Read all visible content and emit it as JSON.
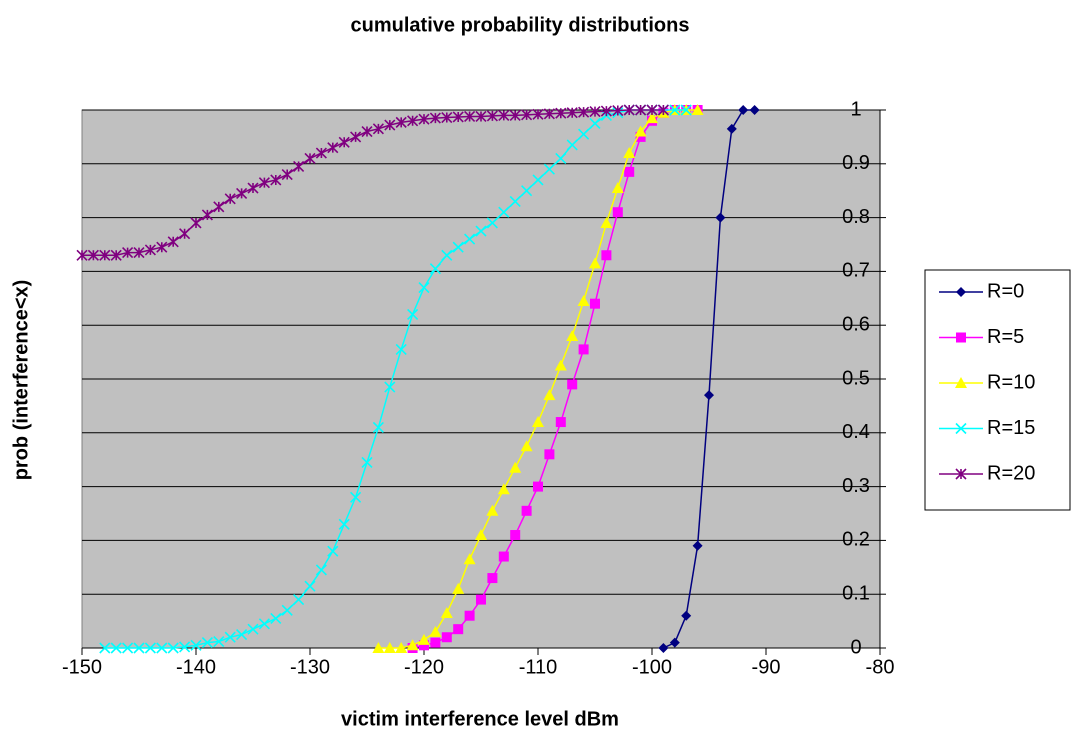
{
  "chart_data": {
    "type": "line",
    "title": "cumulative probability distributions",
    "x_label": "victim interference level dBm",
    "y_label": "prob (interference<x)",
    "xlim": [
      -150,
      -80
    ],
    "xticks": [
      -150,
      -140,
      -130,
      -120,
      -110,
      -100,
      -90,
      -80
    ],
    "ylim": [
      0,
      1
    ],
    "yticks": [
      0,
      0.1,
      0.2,
      0.3,
      0.4,
      0.5,
      0.6,
      0.7,
      0.8,
      0.9,
      1
    ],
    "grid": true,
    "legend": "right",
    "plot_background": "#c0c0c0",
    "series": [
      {
        "name": "R=0",
        "color": "#000080",
        "marker": "diamond",
        "x": [
          -99,
          -98,
          -97,
          -96,
          -95,
          -94,
          -93,
          -92,
          -91
        ],
        "values": [
          0,
          0.01,
          0.06,
          0.19,
          0.47,
          0.8,
          0.965,
          1,
          1
        ]
      },
      {
        "name": "R=5",
        "color": "#ff00ff",
        "marker": "square",
        "x": [
          -121,
          -120,
          -119,
          -118,
          -117,
          -116,
          -115,
          -114,
          -113,
          -112,
          -111,
          -110,
          -109,
          -108,
          -107,
          -106,
          -105,
          -104,
          -103,
          -102,
          -101,
          -100,
          -99,
          -98,
          -97,
          -96
        ],
        "values": [
          0,
          0.005,
          0.01,
          0.02,
          0.035,
          0.06,
          0.09,
          0.13,
          0.17,
          0.21,
          0.255,
          0.3,
          0.36,
          0.42,
          0.49,
          0.555,
          0.64,
          0.73,
          0.81,
          0.885,
          0.95,
          0.98,
          0.995,
          1,
          1,
          1
        ]
      },
      {
        "name": "R=10",
        "color": "#ffff00",
        "marker": "triangle",
        "x": [
          -124,
          -123,
          -122,
          -121,
          -120,
          -119,
          -118,
          -117,
          -116,
          -115,
          -114,
          -113,
          -112,
          -111,
          -110,
          -109,
          -108,
          -107,
          -106,
          -105,
          -104,
          -103,
          -102,
          -101,
          -100,
          -99,
          -98,
          -97,
          -96
        ],
        "values": [
          0,
          0,
          0,
          0.005,
          0.015,
          0.03,
          0.065,
          0.11,
          0.165,
          0.21,
          0.255,
          0.295,
          0.335,
          0.375,
          0.42,
          0.47,
          0.525,
          0.58,
          0.645,
          0.715,
          0.79,
          0.855,
          0.92,
          0.96,
          0.985,
          0.995,
          1,
          1,
          1
        ]
      },
      {
        "name": "R=15",
        "color": "#00ffff",
        "marker": "x",
        "x": [
          -148,
          -147,
          -146,
          -145,
          -144,
          -143,
          -142,
          -141,
          -140,
          -139,
          -138,
          -137,
          -136,
          -135,
          -134,
          -133,
          -132,
          -131,
          -130,
          -129,
          -128,
          -127,
          -126,
          -125,
          -124,
          -123,
          -122,
          -121,
          -120,
          -119,
          -118,
          -117,
          -116,
          -115,
          -114,
          -113,
          -112,
          -111,
          -110,
          -109,
          -108,
          -107,
          -106,
          -105,
          -104,
          -103,
          -102,
          -101,
          -100,
          -99,
          -98,
          -97
        ],
        "values": [
          0,
          0,
          0,
          0,
          0,
          0,
          0,
          0.002,
          0.005,
          0.01,
          0.012,
          0.02,
          0.025,
          0.035,
          0.045,
          0.055,
          0.07,
          0.09,
          0.115,
          0.145,
          0.18,
          0.23,
          0.28,
          0.345,
          0.41,
          0.485,
          0.555,
          0.62,
          0.67,
          0.705,
          0.73,
          0.745,
          0.76,
          0.775,
          0.79,
          0.81,
          0.83,
          0.85,
          0.87,
          0.89,
          0.91,
          0.935,
          0.955,
          0.975,
          0.99,
          0.995,
          1,
          1,
          1,
          1,
          1,
          1
        ]
      },
      {
        "name": "R=20",
        "color": "#800080",
        "marker": "star",
        "x": [
          -150,
          -149,
          -148,
          -147,
          -146,
          -145,
          -144,
          -143,
          -142,
          -141,
          -140,
          -139,
          -138,
          -137,
          -136,
          -135,
          -134,
          -133,
          -132,
          -131,
          -130,
          -129,
          -128,
          -127,
          -126,
          -125,
          -124,
          -123,
          -122,
          -121,
          -120,
          -119,
          -118,
          -117,
          -116,
          -115,
          -114,
          -113,
          -112,
          -111,
          -110,
          -109,
          -108,
          -107,
          -106,
          -105,
          -104,
          -103,
          -102,
          -101,
          -100,
          -99
        ],
        "values": [
          0.73,
          0.73,
          0.73,
          0.73,
          0.735,
          0.735,
          0.74,
          0.745,
          0.755,
          0.77,
          0.79,
          0.805,
          0.82,
          0.835,
          0.845,
          0.855,
          0.865,
          0.87,
          0.88,
          0.895,
          0.91,
          0.92,
          0.93,
          0.94,
          0.95,
          0.96,
          0.965,
          0.972,
          0.977,
          0.98,
          0.983,
          0.985,
          0.986,
          0.987,
          0.988,
          0.988,
          0.989,
          0.99,
          0.99,
          0.991,
          0.992,
          0.993,
          0.994,
          0.995,
          0.996,
          0.997,
          0.998,
          0.999,
          1,
          1,
          1,
          1
        ]
      }
    ]
  }
}
